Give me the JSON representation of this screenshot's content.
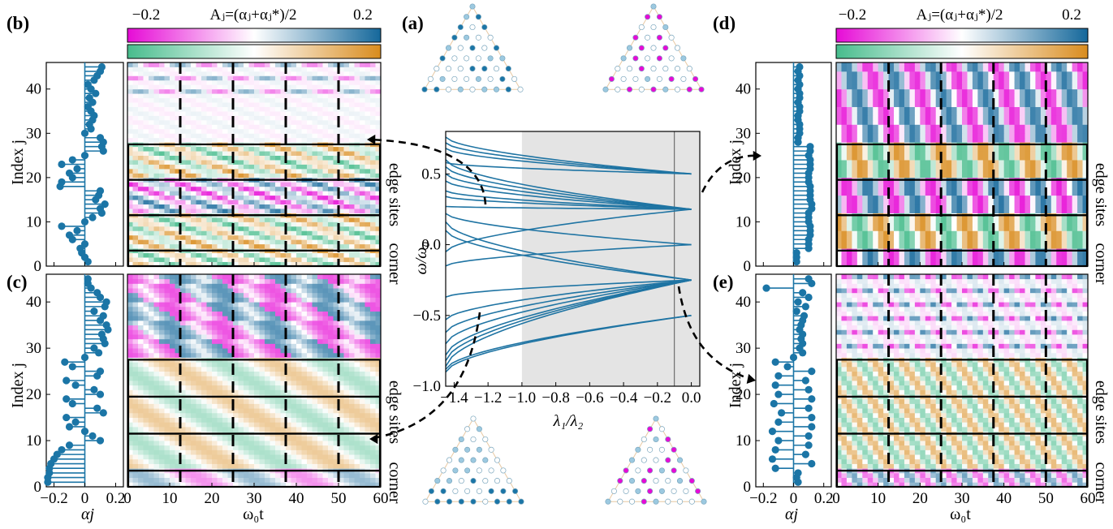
{
  "colors": {
    "stem": "#1b75a6",
    "curve": "#1f74a3",
    "shade": "#e4e4e4",
    "magenta": "#e60bd6",
    "blue": "#15689b",
    "green": "#47bc8c",
    "orange": "#d98c1e"
  },
  "colorbar": {
    "title": "Aⱼ=(αⱼ+αⱼ*)/2",
    "min_label": "−0.2",
    "max_label": "0.2",
    "min": -0.2,
    "max": 0.2
  },
  "labels": {
    "a": "(a)",
    "b": "(b)",
    "c": "(c)",
    "d": "(d)",
    "e": "(e)",
    "index_j": "Index j",
    "alpha_j": "αj",
    "omega_t": "ω₀t",
    "lambda_ratio": "λ₁/λ₂",
    "omega_ratio": "ω/ω₀",
    "edge_sites": "edge sites",
    "corner": "corner"
  },
  "chart_data": [
    {
      "panel": "a",
      "type": "line",
      "xlabel": "λ₁/λ₂",
      "ylabel": "ω/ω₀",
      "xlim": [
        -1.45,
        0.05
      ],
      "ylim": [
        -1.0,
        0.8
      ],
      "xticks": [
        "−1.4",
        "−1.2",
        "−1.0",
        "−0.8",
        "−0.6",
        "−0.4",
        "−0.2",
        "0.0"
      ],
      "yticks": [
        "−1.0",
        "−0.5",
        "0.0",
        "0.5"
      ],
      "shaded_region": [
        -1.0,
        0.05
      ],
      "marker_line_x": -0.1,
      "series_endpoints": [
        {
          "start": 0.76,
          "end": 0.5
        },
        {
          "start": 0.72,
          "end": 0.5
        },
        {
          "start": 0.68,
          "end": 0.5
        },
        {
          "start": 0.6,
          "end": 0.25
        },
        {
          "start": 0.58,
          "end": 0.5
        },
        {
          "start": 0.55,
          "end": 0.25
        },
        {
          "start": 0.5,
          "end": 0.25
        },
        {
          "start": 0.45,
          "end": 0.25
        },
        {
          "start": 0.38,
          "end": 0.25
        },
        {
          "start": 0.34,
          "end": 0.25
        },
        {
          "start": 0.27,
          "end": 0.25
        },
        {
          "start": 0.22,
          "end": 0.0
        },
        {
          "start": 0.16,
          "end": -0.25
        },
        {
          "start": 0.1,
          "end": -0.25
        },
        {
          "start": -0.05,
          "end": 0.25
        },
        {
          "start": -0.15,
          "end": 0.0
        },
        {
          "start": -0.37,
          "end": -0.25
        },
        {
          "start": -0.53,
          "end": -0.25
        },
        {
          "start": -0.62,
          "end": -0.25
        },
        {
          "start": -0.7,
          "end": -0.25
        },
        {
          "start": -0.78,
          "end": -0.25
        },
        {
          "start": -0.82,
          "end": -0.25
        },
        {
          "start": -0.86,
          "end": -0.25
        },
        {
          "start": -0.88,
          "end": -0.5
        },
        {
          "start": -0.9,
          "end": -0.5
        }
      ]
    },
    {
      "panel": "b",
      "type": "heatmap",
      "xlabel": "ω₀t",
      "ylabel": "Index j",
      "xlim": [
        0,
        60
      ],
      "ylim": [
        0,
        46
      ],
      "xticks": [
        0,
        10,
        20,
        30,
        40,
        50,
        60
      ],
      "yticks": [
        0,
        10,
        20,
        30,
        40
      ],
      "dashed_lines_x": [
        12.5,
        25,
        37.5,
        50
      ],
      "boxes": [
        [
          0,
          3.5
        ],
        [
          3.5,
          11.5
        ],
        [
          11.5,
          19.5
        ],
        [
          19.5,
          27.5
        ]
      ],
      "stem_alpha_j": [
        0.02,
        0.0,
        -0.02,
        -0.03,
        0.0,
        -0.08,
        -0.1,
        -0.05,
        -0.15,
        0.0,
        0.05,
        0.11,
        0.1,
        0.13,
        0.07,
        0.09,
        0.1,
        -0.16,
        -0.15,
        -0.08,
        -0.1,
        -0.05,
        -0.15,
        -0.08,
        0.0,
        0.12,
        0.11,
        0.12,
        0.1,
        0.0,
        0.04,
        0.03,
        0.05,
        0.06,
        0.04,
        0.02,
        0.05,
        0.03,
        0.07,
        0.04,
        0.02,
        0.06,
        0.08,
        0.1,
        0.11
      ]
    },
    {
      "panel": "c",
      "type": "heatmap",
      "xlabel": "ω₀t",
      "ylabel": "Index j",
      "xlim": [
        0,
        60
      ],
      "ylim": [
        0,
        46
      ],
      "xticks": [
        0,
        10,
        20,
        30,
        40,
        50,
        60
      ],
      "yticks": [
        0,
        10,
        20,
        30,
        40
      ],
      "dashed_lines_x": [
        12.5,
        25,
        37.5,
        50
      ],
      "boxes": [
        [
          0,
          3.5
        ],
        [
          3.5,
          11.5
        ],
        [
          11.5,
          19.5
        ],
        [
          19.5,
          27.5
        ]
      ]
    },
    {
      "panel": "d",
      "type": "heatmap",
      "xlabel": "ω₀t",
      "ylabel": "Index j",
      "xlim": [
        0,
        60
      ],
      "ylim": [
        0,
        46
      ],
      "xticks": [
        0,
        10,
        20,
        30,
        40,
        50,
        60
      ],
      "yticks": [
        0,
        10,
        20,
        30,
        40
      ],
      "dashed_lines_x": [
        12.5,
        25,
        37.5,
        50
      ],
      "boxes": [
        [
          0,
          3.5
        ],
        [
          3.5,
          11.5
        ],
        [
          11.5,
          19.5
        ],
        [
          19.5,
          27.5
        ]
      ]
    },
    {
      "panel": "e",
      "type": "heatmap",
      "xlabel": "ω₀t",
      "ylabel": "Index j",
      "xlim": [
        0,
        60
      ],
      "ylim": [
        0,
        46
      ],
      "xticks": [
        0,
        10,
        20,
        30,
        40,
        50,
        60
      ],
      "yticks": [
        0,
        10,
        20,
        30,
        40
      ],
      "dashed_lines_x": [
        12.5,
        25,
        37.5,
        50
      ],
      "boxes": [
        [
          0,
          3.5
        ],
        [
          3.5,
          11.5
        ],
        [
          11.5,
          19.5
        ],
        [
          19.5,
          27.5
        ]
      ]
    }
  ]
}
